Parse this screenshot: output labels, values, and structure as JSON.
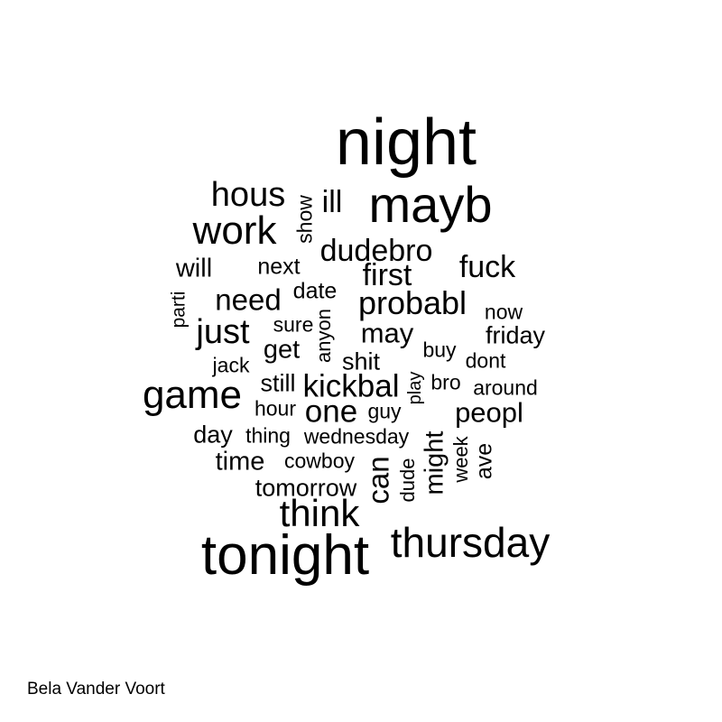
{
  "words": [
    {
      "id": "night",
      "text": "night"
    },
    {
      "id": "mayb",
      "text": "mayb"
    },
    {
      "id": "hous",
      "text": "hous"
    },
    {
      "id": "show",
      "text": "show"
    },
    {
      "id": "ill",
      "text": "ill"
    },
    {
      "id": "work",
      "text": "work"
    },
    {
      "id": "dudebro",
      "text": "dudebro"
    },
    {
      "id": "will",
      "text": "will"
    },
    {
      "id": "next",
      "text": "next"
    },
    {
      "id": "fuck",
      "text": "fuck"
    },
    {
      "id": "first",
      "text": "first"
    },
    {
      "id": "need",
      "text": "need"
    },
    {
      "id": "date",
      "text": "date"
    },
    {
      "id": "probabl",
      "text": "probabl"
    },
    {
      "id": "parti",
      "text": "parti"
    },
    {
      "id": "now",
      "text": "now"
    },
    {
      "id": "just",
      "text": "just"
    },
    {
      "id": "sure",
      "text": "sure"
    },
    {
      "id": "anyon",
      "text": "anyon"
    },
    {
      "id": "may",
      "text": "may"
    },
    {
      "id": "friday",
      "text": "friday"
    },
    {
      "id": "get",
      "text": "get"
    },
    {
      "id": "buy",
      "text": "buy"
    },
    {
      "id": "jack",
      "text": "jack"
    },
    {
      "id": "shit",
      "text": "shit"
    },
    {
      "id": "dont",
      "text": "dont"
    },
    {
      "id": "still",
      "text": "still"
    },
    {
      "id": "play",
      "text": "play"
    },
    {
      "id": "bro",
      "text": "bro"
    },
    {
      "id": "game",
      "text": "game"
    },
    {
      "id": "kickbal",
      "text": "kickbal"
    },
    {
      "id": "around",
      "text": "around"
    },
    {
      "id": "hour",
      "text": "hour"
    },
    {
      "id": "one",
      "text": "one"
    },
    {
      "id": "guy",
      "text": "guy"
    },
    {
      "id": "peopl",
      "text": "peopl"
    },
    {
      "id": "day",
      "text": "day"
    },
    {
      "id": "thing",
      "text": "thing"
    },
    {
      "id": "wednesday",
      "text": "wednesday"
    },
    {
      "id": "might",
      "text": "might"
    },
    {
      "id": "week",
      "text": "week"
    },
    {
      "id": "ave",
      "text": "ave"
    },
    {
      "id": "time",
      "text": "time"
    },
    {
      "id": "cowboy",
      "text": "cowboy"
    },
    {
      "id": "can",
      "text": "can"
    },
    {
      "id": "dude",
      "text": "dude"
    },
    {
      "id": "tomorrow",
      "text": "tomorrow"
    },
    {
      "id": "think",
      "text": "think"
    },
    {
      "id": "thursday",
      "text": "thursday"
    },
    {
      "id": "tonight",
      "text": "tonight"
    }
  ],
  "credit": "Bela Vander Voort"
}
